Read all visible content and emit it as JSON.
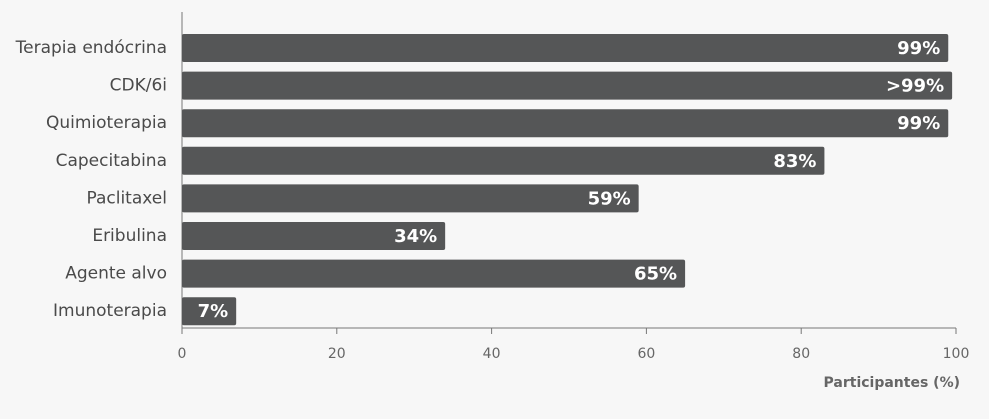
{
  "chart_data": {
    "type": "bar",
    "orientation": "horizontal",
    "categories": [
      "Terapia endócrina",
      "CDK/6i",
      "Quimioterapia",
      "Capecitabina",
      "Paclitaxel",
      "Eribulina",
      "Agente alvo",
      "Imunoterapia"
    ],
    "values": [
      99,
      99.5,
      99,
      83,
      59,
      34,
      65,
      7
    ],
    "value_labels": [
      "99%",
      ">99%",
      "99%",
      "83%",
      "59%",
      "34%",
      "65%",
      "7%"
    ],
    "color": "#555657",
    "xlim": [
      0,
      100
    ],
    "xticks": [
      0,
      20,
      40,
      60,
      80,
      100
    ],
    "x_label": "Participantes (%)"
  }
}
